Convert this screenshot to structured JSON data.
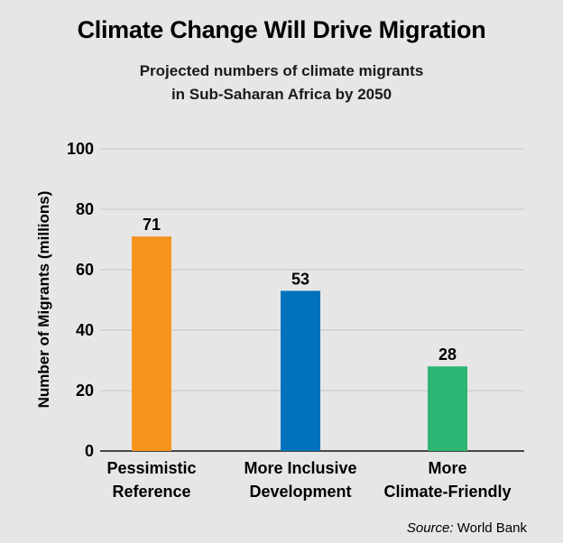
{
  "chart_data": {
    "type": "bar",
    "title": "Climate Change Will Drive Migration",
    "subtitle": [
      "Projected numbers of climate migrants",
      "in Sub-Saharan Africa by 2050"
    ],
    "categories": [
      [
        "Pessimistic",
        "Reference"
      ],
      [
        "More Inclusive",
        "Development"
      ],
      [
        "More",
        "Climate-Friendly"
      ]
    ],
    "values": [
      71,
      53,
      28
    ],
    "data_labels": [
      "71",
      "53",
      "28"
    ],
    "colors": [
      "#F7941E",
      "#0071BC",
      "#2DB574"
    ],
    "xlabel": "",
    "ylabel": "Number of Migrants (millions)",
    "ylim": [
      0,
      100
    ],
    "yticks": [
      0,
      20,
      40,
      60,
      80,
      100
    ],
    "grid": true,
    "legend": "none",
    "source_prefix": "Source:",
    "source_text": " World Bank"
  }
}
